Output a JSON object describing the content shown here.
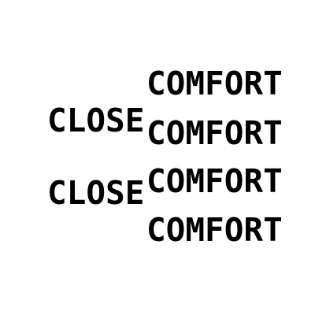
{
  "words": {
    "comfort_1": "COMFORT",
    "close_1": "CLOSE",
    "comfort_2": "COMFORT",
    "comfort_3": "COMFORT",
    "close_2": "CLOSE",
    "comfort_4": "COMFORT"
  },
  "colors": {
    "background": "#ffffff",
    "text": "#000000"
  }
}
